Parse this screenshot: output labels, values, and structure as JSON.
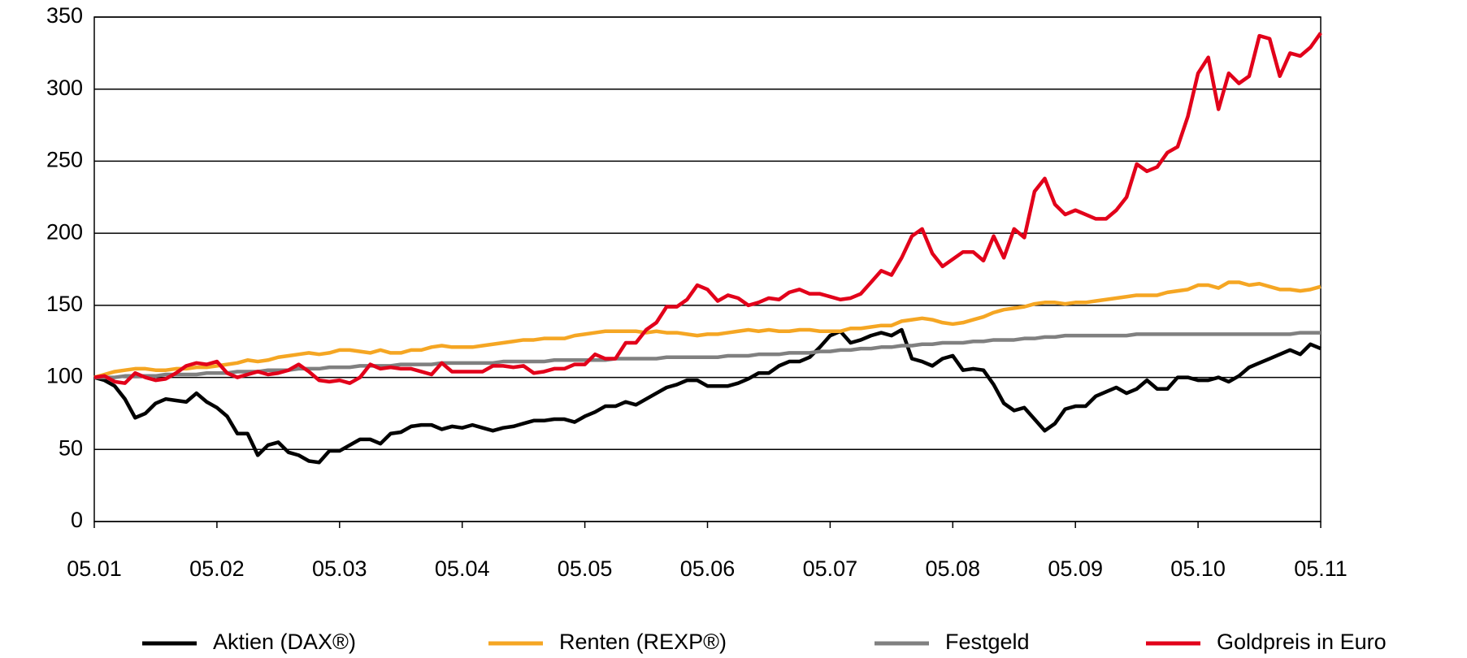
{
  "chart_data": {
    "type": "line",
    "categories": [
      "05.01",
      null,
      null,
      null,
      null,
      null,
      null,
      null,
      null,
      null,
      null,
      null,
      "05.02",
      null,
      null,
      null,
      null,
      null,
      null,
      null,
      null,
      null,
      null,
      null,
      "05.03",
      null,
      null,
      null,
      null,
      null,
      null,
      null,
      null,
      null,
      null,
      null,
      "05.04",
      null,
      null,
      null,
      null,
      null,
      null,
      null,
      null,
      null,
      null,
      null,
      "05.05",
      null,
      null,
      null,
      null,
      null,
      null,
      null,
      null,
      null,
      null,
      null,
      "05.06",
      null,
      null,
      null,
      null,
      null,
      null,
      null,
      null,
      null,
      null,
      null,
      "05.07",
      null,
      null,
      null,
      null,
      null,
      null,
      null,
      null,
      null,
      null,
      null,
      "05.08",
      null,
      null,
      null,
      null,
      null,
      null,
      null,
      null,
      null,
      null,
      null,
      "05.09",
      null,
      null,
      null,
      null,
      null,
      null,
      null,
      null,
      null,
      null,
      null,
      "05.10",
      null,
      null,
      null,
      null,
      null,
      null,
      null,
      null,
      null,
      null,
      null,
      "05.11"
    ],
    "series": [
      {
        "name": "Aktien (DAX®)",
        "color": "#000000",
        "values": [
          100,
          98,
          94,
          85,
          72,
          75,
          82,
          85,
          84,
          83,
          89,
          83,
          79,
          73,
          61,
          61,
          46,
          53,
          55,
          48,
          46,
          42,
          41,
          49,
          49,
          53,
          57,
          57,
          54,
          61,
          62,
          66,
          67,
          67,
          64,
          66,
          65,
          67,
          65,
          63,
          65,
          66,
          68,
          70,
          70,
          71,
          71,
          69,
          73,
          76,
          80,
          80,
          83,
          81,
          85,
          89,
          93,
          95,
          98,
          98,
          94,
          94,
          94,
          96,
          99,
          103,
          103,
          108,
          111,
          111,
          114,
          121,
          129,
          132,
          124,
          126,
          129,
          131,
          129,
          133,
          113,
          111,
          108,
          113,
          115,
          105,
          106,
          105,
          95,
          82,
          77,
          79,
          71,
          63,
          68,
          78,
          80,
          80,
          87,
          90,
          93,
          89,
          92,
          98,
          92,
          92,
          100,
          100,
          98,
          98,
          100,
          97,
          101,
          107,
          110,
          113,
          116,
          119,
          116,
          123,
          120
        ]
      },
      {
        "name": "Renten (REXP®)",
        "color": "#f5a623",
        "values": [
          100,
          102,
          104,
          105,
          106,
          106,
          105,
          105,
          106,
          106,
          107,
          107,
          108,
          109,
          110,
          112,
          111,
          112,
          114,
          115,
          116,
          117,
          116,
          117,
          119,
          119,
          118,
          117,
          119,
          117,
          117,
          119,
          119,
          121,
          122,
          121,
          121,
          121,
          122,
          123,
          124,
          125,
          126,
          126,
          127,
          127,
          127,
          129,
          130,
          131,
          132,
          132,
          132,
          132,
          131,
          132,
          131,
          131,
          130,
          129,
          130,
          130,
          131,
          132,
          133,
          132,
          133,
          132,
          132,
          133,
          133,
          132,
          132,
          132,
          134,
          134,
          135,
          136,
          136,
          139,
          140,
          141,
          140,
          138,
          137,
          138,
          140,
          142,
          145,
          147,
          148,
          149,
          151,
          152,
          152,
          151,
          152,
          152,
          153,
          154,
          155,
          156,
          157,
          157,
          157,
          159,
          160,
          161,
          164,
          164,
          162,
          166,
          166,
          164,
          165,
          163,
          161,
          161,
          160,
          161,
          163
        ]
      },
      {
        "name": "Festgeld",
        "color": "#808080",
        "values": [
          100,
          100,
          100,
          101,
          101,
          101,
          101,
          102,
          102,
          102,
          102,
          103,
          103,
          103,
          104,
          104,
          104,
          105,
          105,
          105,
          106,
          106,
          106,
          107,
          107,
          107,
          108,
          108,
          108,
          108,
          109,
          109,
          109,
          109,
          110,
          110,
          110,
          110,
          110,
          110,
          111,
          111,
          111,
          111,
          111,
          112,
          112,
          112,
          112,
          112,
          112,
          113,
          113,
          113,
          113,
          113,
          114,
          114,
          114,
          114,
          114,
          114,
          115,
          115,
          115,
          116,
          116,
          116,
          117,
          117,
          117,
          118,
          118,
          119,
          119,
          120,
          120,
          121,
          121,
          122,
          122,
          123,
          123,
          124,
          124,
          124,
          125,
          125,
          126,
          126,
          126,
          127,
          127,
          128,
          128,
          129,
          129,
          129,
          129,
          129,
          129,
          129,
          130,
          130,
          130,
          130,
          130,
          130,
          130,
          130,
          130,
          130,
          130,
          130,
          130,
          130,
          130,
          130,
          131,
          131,
          131
        ]
      },
      {
        "name": "Goldpreis in Euro",
        "color": "#e2001a",
        "values": [
          100,
          101,
          97,
          96,
          103,
          100,
          98,
          99,
          103,
          108,
          110,
          109,
          111,
          103,
          100,
          102,
          104,
          102,
          103,
          105,
          109,
          104,
          98,
          97,
          98,
          96,
          100,
          109,
          106,
          107,
          106,
          106,
          104,
          102,
          110,
          104,
          104,
          104,
          104,
          108,
          108,
          107,
          108,
          103,
          104,
          106,
          106,
          109,
          109,
          116,
          113,
          113,
          124,
          124,
          133,
          138,
          149,
          149,
          154,
          164,
          161,
          153,
          157,
          155,
          150,
          152,
          155,
          154,
          159,
          161,
          158,
          158,
          156,
          154,
          155,
          158,
          166,
          174,
          171,
          183,
          198,
          203,
          186,
          177,
          182,
          187,
          187,
          181,
          198,
          183,
          203,
          197,
          229,
          238,
          220,
          213,
          216,
          213,
          210,
          210,
          216,
          225,
          248,
          243,
          246,
          256,
          260,
          281,
          311,
          322,
          286,
          311,
          304,
          309,
          337,
          335,
          309,
          325,
          323,
          329,
          339
        ]
      }
    ],
    "ylim": [
      0,
      350
    ],
    "yticks": [
      0,
      50,
      100,
      150,
      200,
      250,
      300,
      350
    ],
    "grid": true,
    "legend": "bottom"
  }
}
